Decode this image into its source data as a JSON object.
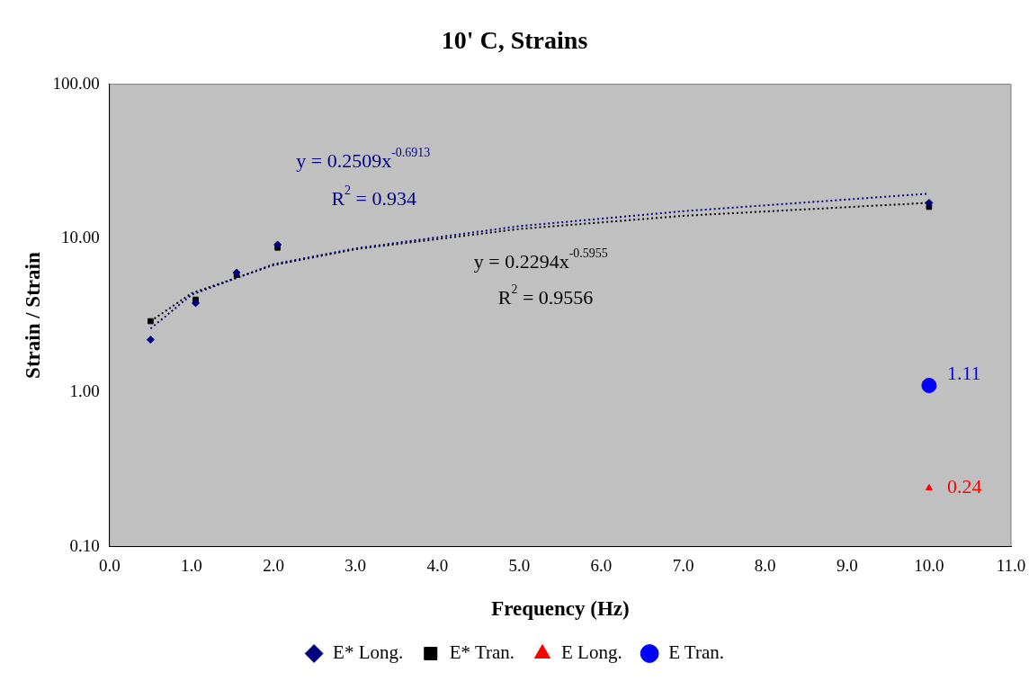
{
  "chart_data": {
    "type": "scatter",
    "title": "10' C, Strains",
    "xlabel": "Frequency (Hz)",
    "ylabel": "Strain / Strain",
    "log": "y",
    "grid": false,
    "legend": "bottom",
    "xlim": [
      0,
      11
    ],
    "xticks": [
      {
        "value": 0,
        "label": "0.0"
      },
      {
        "value": 1,
        "label": "1.0"
      },
      {
        "value": 2,
        "label": "2.0"
      },
      {
        "value": 3,
        "label": "3.0"
      },
      {
        "value": 4,
        "label": "4.0"
      },
      {
        "value": 5,
        "label": "5.0"
      },
      {
        "value": 6,
        "label": "6.0"
      },
      {
        "value": 7,
        "label": "7.0"
      },
      {
        "value": 8,
        "label": "8.0"
      },
      {
        "value": 9,
        "label": "9.0"
      },
      {
        "value": 10,
        "label": "10.0"
      },
      {
        "value": 11,
        "label": "11.0"
      }
    ],
    "ylim": [
      0.1,
      100
    ],
    "yticks": [
      {
        "value": 0.1,
        "label": "0.10"
      },
      {
        "value": 1,
        "label": "1.00"
      },
      {
        "value": 10,
        "label": "10.00"
      },
      {
        "value": 100,
        "label": "100.00"
      }
    ],
    "series": [
      {
        "name": "E* Long.",
        "color": "#000080",
        "marker": "diamond",
        "x": [
          0.5,
          1.05,
          1.55,
          2.05,
          10
        ],
        "values": [
          2.2,
          3.8,
          6.0,
          9.1,
          17
        ]
      },
      {
        "name": "E* Tran.",
        "color": "#000000",
        "marker": "square",
        "x": [
          0.5,
          1.05,
          1.55,
          2.05,
          10
        ],
        "values": [
          2.9,
          4.0,
          5.8,
          8.7,
          16
        ]
      },
      {
        "name": "E Long.",
        "color": "#ff0000",
        "marker": "triangle",
        "x": [
          10
        ],
        "values": [
          0.24
        ],
        "value_labels": [
          "0.24"
        ]
      },
      {
        "name": "E Tran.",
        "color": "#0000ff",
        "marker": "circle",
        "x": [
          10
        ],
        "values": [
          1.11
        ],
        "value_labels": [
          "1.11"
        ]
      },
      {
        "type": "line",
        "color": "#000080",
        "line_style": "dotted",
        "marker": "none",
        "x": [
          0.5,
          1,
          2,
          3,
          5,
          7,
          10
        ],
        "values": [
          2.6,
          4.3,
          6.8,
          8.6,
          12,
          15,
          19.5
        ]
      },
      {
        "type": "line",
        "color": "#000000",
        "line_style": "dotted",
        "marker": "none",
        "x": [
          0.5,
          1,
          2,
          3,
          5,
          7,
          10
        ],
        "values": [
          2.9,
          4.4,
          6.7,
          8.5,
          11.5,
          14,
          17
        ]
      }
    ],
    "annotations": [
      "y = 0.2509x$^{-0.6913}$",
      "R$^{2}$ = 0.934",
      "y = 0.2294x$^{-0.5955}$",
      "R$^{2}$ = 0.9556"
    ]
  }
}
